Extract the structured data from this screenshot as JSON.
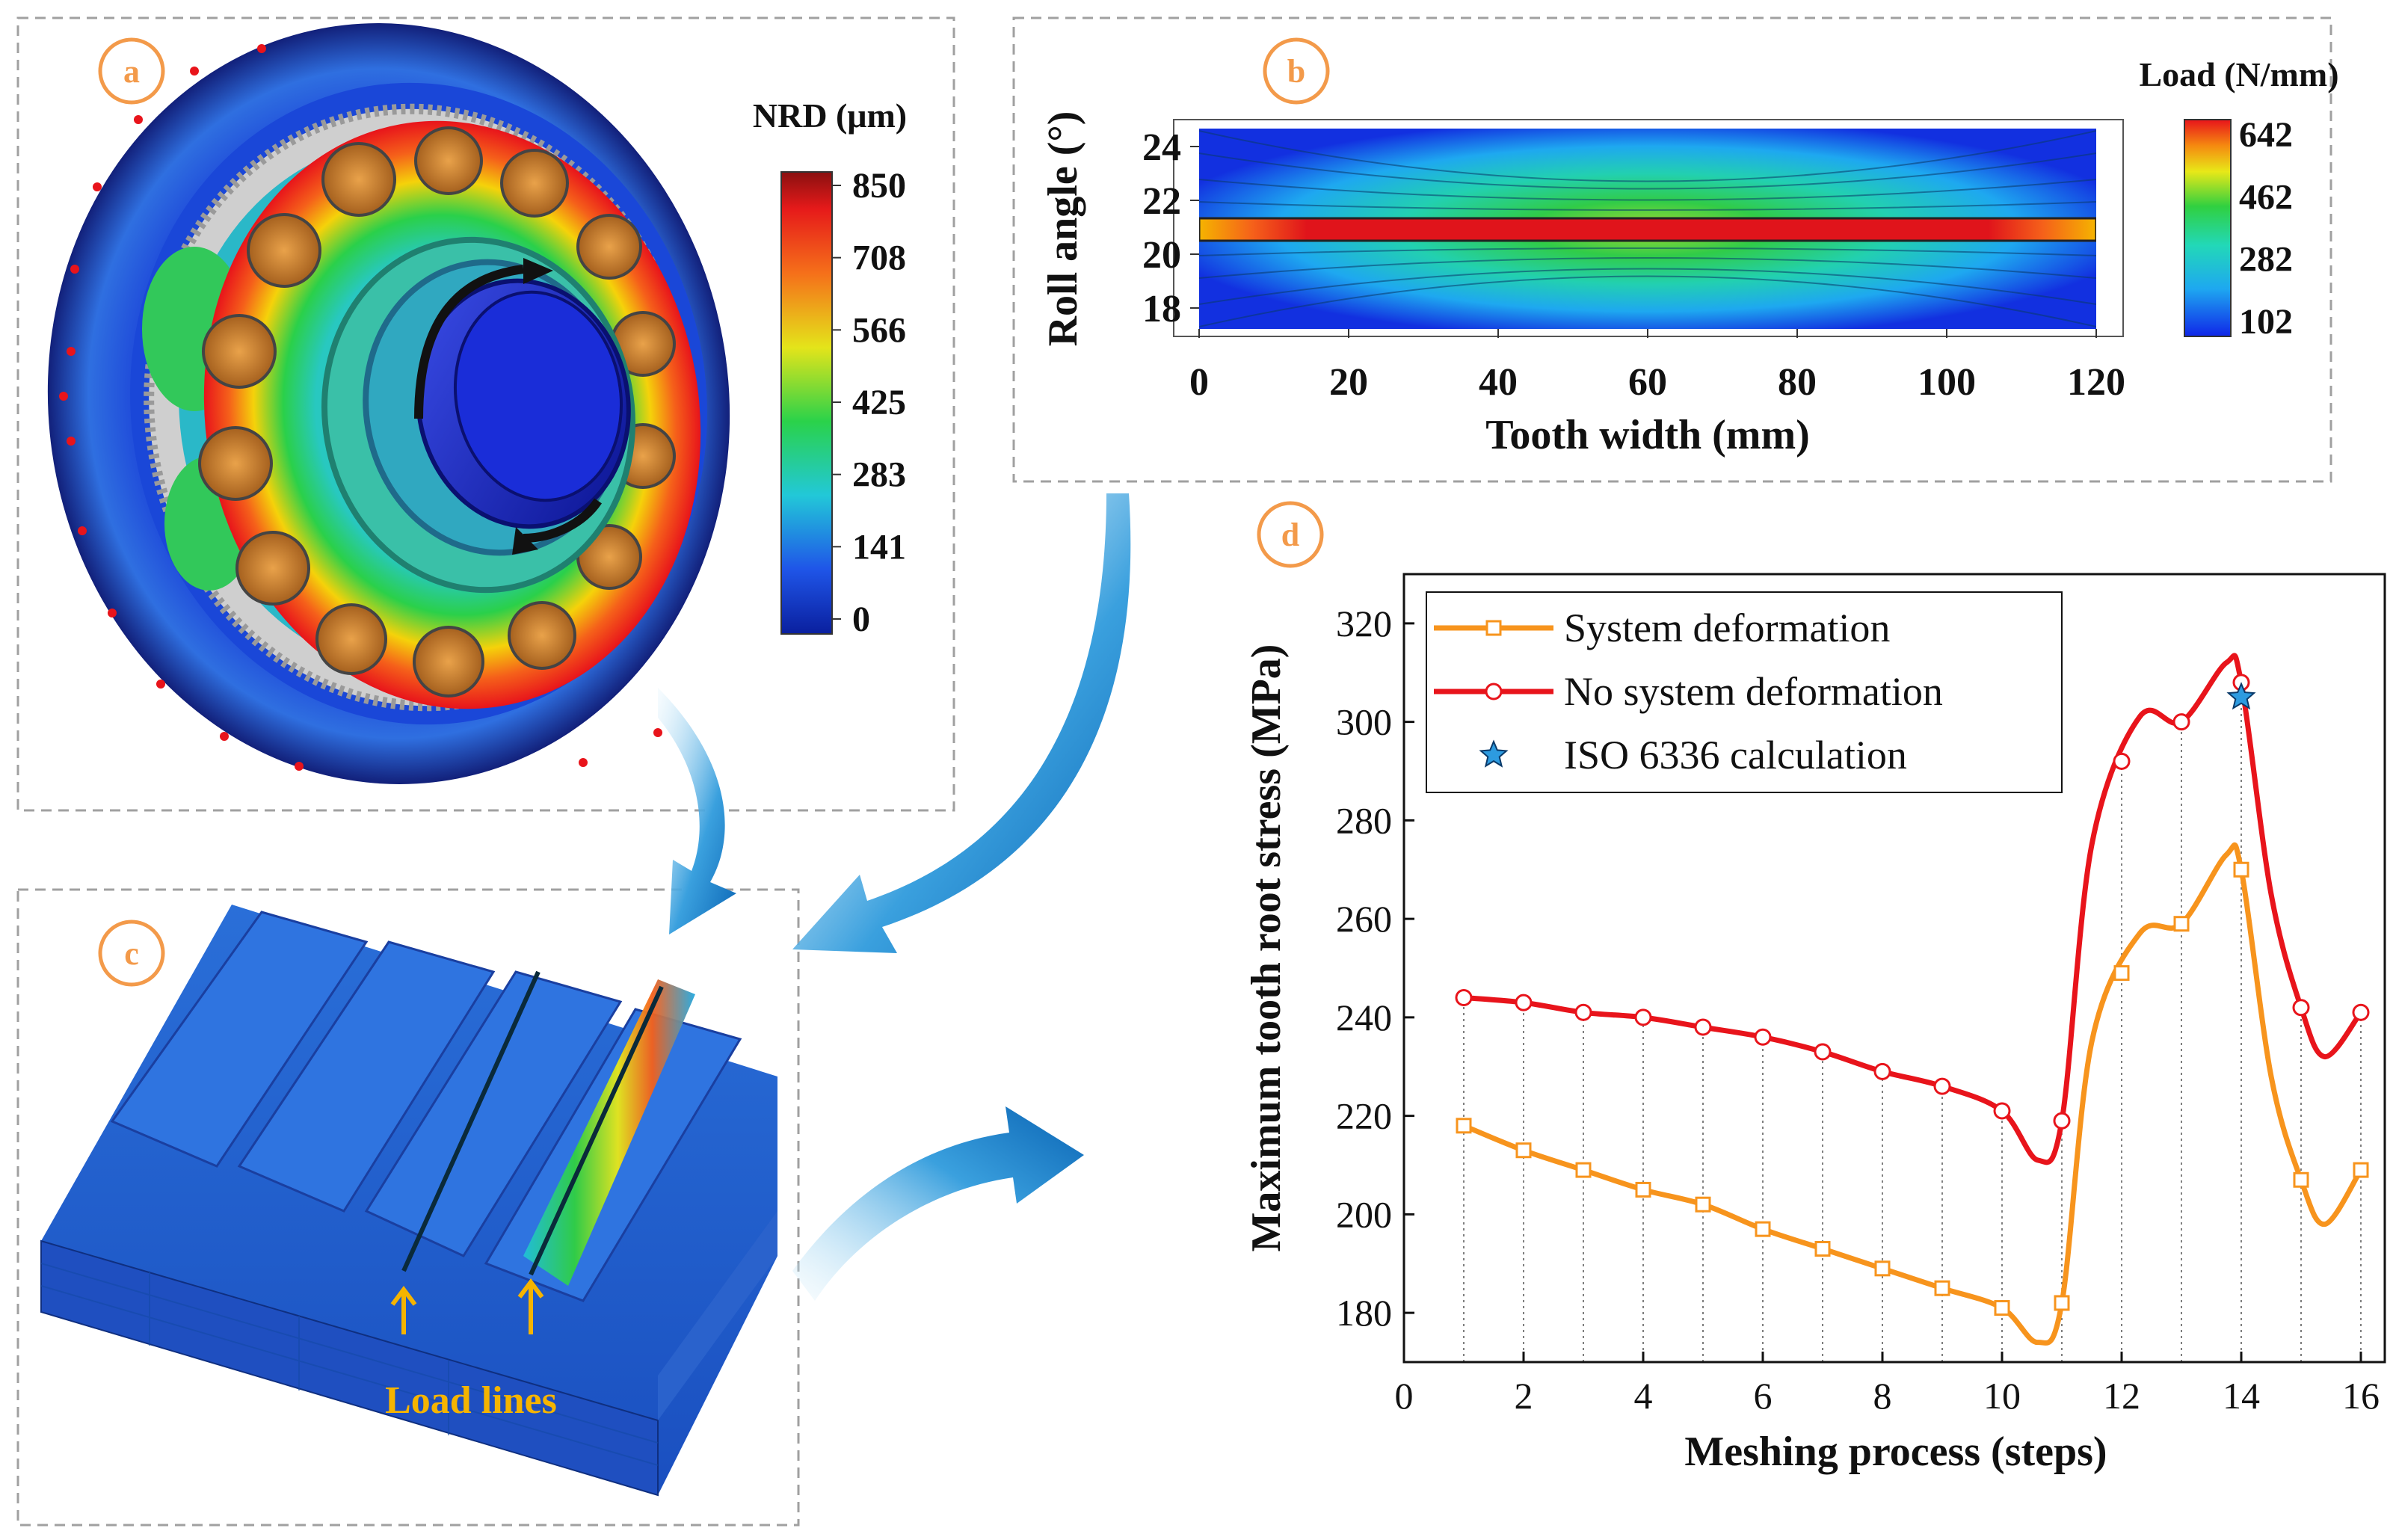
{
  "panels": {
    "a": {
      "label": "a",
      "colorbar": {
        "title": "NRD (μm)",
        "ticks": [
          "850",
          "708",
          "566",
          "425",
          "283",
          "141",
          "0"
        ]
      }
    },
    "b": {
      "label": "b",
      "xlabel": "Tooth width (mm)",
      "ylabel": "Roll angle (°)",
      "xticks": [
        "0",
        "20",
        "40",
        "60",
        "80",
        "100",
        "120"
      ],
      "yticks": [
        "24",
        "22",
        "20",
        "18"
      ],
      "colorbar": {
        "title": "Load (N/mm)",
        "ticks": [
          "642",
          "462",
          "282",
          "102"
        ]
      }
    },
    "c": {
      "label": "c",
      "annotation": "Load lines"
    },
    "d": {
      "label": "d"
    }
  },
  "colors": {
    "system_deformation": "#f7941d",
    "no_system_deformation": "#e8141b",
    "iso_marker": "#2d9be0",
    "panel_label": "#f39a4a",
    "annotation": "#f5b400"
  },
  "chart_data": {
    "type": "line",
    "title": "",
    "xlabel": "Meshing process (steps)",
    "ylabel": "Maximum tooth root stress (MPa)",
    "xlim": [
      0,
      16.4
    ],
    "ylim": [
      170,
      330
    ],
    "xticks": [
      0,
      2,
      4,
      6,
      8,
      10,
      12,
      14,
      16
    ],
    "yticks": [
      180,
      200,
      220,
      240,
      260,
      280,
      300,
      320
    ],
    "x": [
      1,
      2,
      3,
      4,
      5,
      6,
      7,
      8,
      9,
      10,
      11,
      12,
      13,
      14,
      15,
      16
    ],
    "series": [
      {
        "name": "System deformation",
        "marker": "square",
        "values": [
          218,
          213,
          209,
          205,
          202,
          197,
          193,
          189,
          185,
          181,
          182,
          249,
          259,
          270,
          207,
          209
        ],
        "curve": [
          [
            1,
            218
          ],
          [
            2,
            213
          ],
          [
            3,
            209
          ],
          [
            4,
            205
          ],
          [
            5,
            202
          ],
          [
            6,
            197
          ],
          [
            7,
            193
          ],
          [
            8,
            189
          ],
          [
            9,
            185
          ],
          [
            10,
            181
          ],
          [
            10.6,
            174
          ],
          [
            11,
            182
          ],
          [
            11.5,
            235
          ],
          [
            12.3,
            257
          ],
          [
            13,
            259
          ],
          [
            13.75,
            273
          ],
          [
            14,
            270
          ],
          [
            14.5,
            228
          ],
          [
            15,
            207
          ],
          [
            15.4,
            198
          ],
          [
            16,
            209
          ]
        ]
      },
      {
        "name": "No system deformation",
        "marker": "circle",
        "values": [
          244,
          243,
          241,
          240,
          238,
          236,
          233,
          229,
          226,
          221,
          219,
          292,
          300,
          308,
          242,
          241
        ],
        "curve": [
          [
            1,
            244
          ],
          [
            2,
            243
          ],
          [
            3,
            241
          ],
          [
            4,
            240
          ],
          [
            5,
            238
          ],
          [
            6,
            236
          ],
          [
            7,
            233
          ],
          [
            8,
            229
          ],
          [
            9,
            226
          ],
          [
            10,
            221
          ],
          [
            10.6,
            211
          ],
          [
            11,
            219
          ],
          [
            11.5,
            275
          ],
          [
            12.3,
            301
          ],
          [
            13,
            300
          ],
          [
            13.75,
            312
          ],
          [
            14,
            308
          ],
          [
            14.5,
            265
          ],
          [
            15,
            242
          ],
          [
            15.4,
            232
          ],
          [
            16,
            241
          ]
        ]
      },
      {
        "name": "ISO 6336 calculation",
        "marker": "star",
        "x": [
          14
        ],
        "values": [
          305
        ]
      }
    ],
    "legend": "top-left"
  }
}
